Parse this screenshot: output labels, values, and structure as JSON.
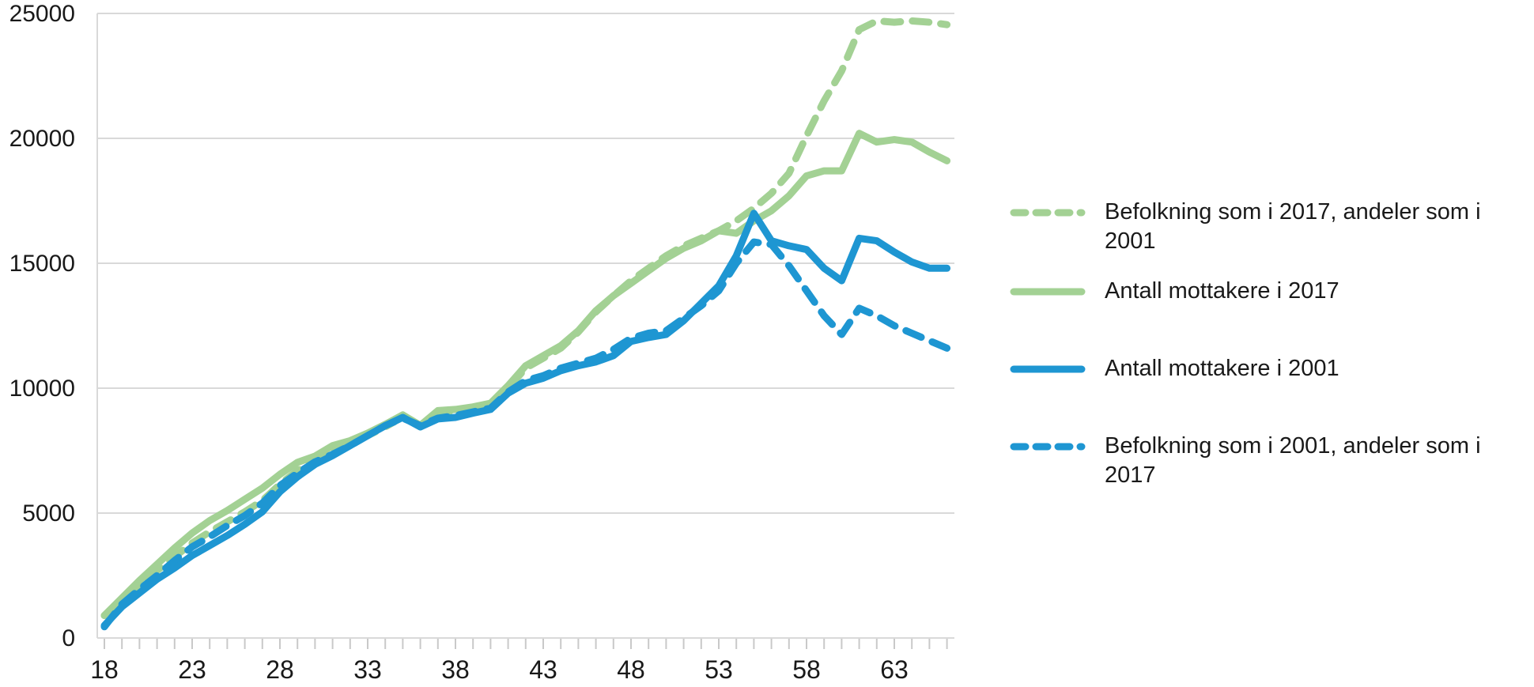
{
  "chart_data": {
    "type": "line",
    "title": "",
    "xlabel": "",
    "ylabel": "",
    "x_start": 18,
    "x_end": 66,
    "xlim": [
      17.6,
      66.5
    ],
    "ylim": [
      0,
      25000
    ],
    "xticks": [
      18,
      23,
      28,
      33,
      38,
      43,
      48,
      53,
      58,
      63
    ],
    "yticks": [
      0,
      5000,
      10000,
      15000,
      20000,
      25000
    ],
    "ytick_labels": [
      "0",
      "5000",
      "10000",
      "15000",
      "20000",
      "25000"
    ],
    "grid": "horizontal",
    "grid_color": "#d9d9d9",
    "axis_color": "#c9c9c9",
    "text_color": "#191919",
    "legend_position": "right",
    "series": [
      {
        "name": "Befolkning som i 2017, andeler som i 2001",
        "color": "#a3d194",
        "dash": true,
        "values": [
          900,
          1550,
          2150,
          2700,
          3250,
          3800,
          4250,
          4650,
          5050,
          5500,
          6150,
          6700,
          7100,
          7500,
          7800,
          8100,
          8450,
          8850,
          8450,
          9000,
          9100,
          9200,
          9350,
          10000,
          10800,
          11200,
          11600,
          12250,
          13050,
          13700,
          14300,
          14800,
          15300,
          15700,
          16000,
          16300,
          16700,
          17200,
          17800,
          18600,
          20100,
          21500,
          22700,
          24350,
          24700,
          24650,
          24700,
          24650,
          24550
        ]
      },
      {
        "name": "Antall mottakere i 2017",
        "color": "#a3d194",
        "dash": false,
        "values": [
          900,
          1600,
          2300,
          2950,
          3600,
          4200,
          4700,
          5100,
          5550,
          6000,
          6550,
          7030,
          7280,
          7700,
          7900,
          8200,
          8550,
          8930,
          8510,
          9100,
          9150,
          9250,
          9400,
          10100,
          10900,
          11300,
          11700,
          12300,
          13100,
          13700,
          14200,
          14700,
          15200,
          15600,
          15900,
          16300,
          16200,
          16700,
          17100,
          17700,
          18500,
          18700,
          18700,
          20200,
          19850,
          19950,
          19850,
          19450,
          19100
        ]
      },
      {
        "name": "Antall mottakere i 2001",
        "color": "#1e96d2",
        "dash": false,
        "values": [
          500,
          1250,
          1800,
          2350,
          2800,
          3300,
          3700,
          4100,
          4550,
          5050,
          5850,
          6450,
          6950,
          7300,
          7700,
          8100,
          8500,
          8830,
          8450,
          8770,
          8830,
          9000,
          9150,
          9800,
          10200,
          10400,
          10700,
          10900,
          11050,
          11300,
          11870,
          12030,
          12150,
          12700,
          13400,
          14100,
          15300,
          17000,
          15900,
          15700,
          15550,
          14800,
          14300,
          16000,
          15900,
          15450,
          15050,
          14800,
          14800
        ]
      },
      {
        "name": "Befolkning som i 2001, andeler som i 2017",
        "color": "#1e96d2",
        "dash": true,
        "values": [
          450,
          1350,
          1950,
          2500,
          3100,
          3650,
          4050,
          4500,
          4900,
          5400,
          6100,
          6600,
          7050,
          7350,
          7700,
          8100,
          8500,
          8800,
          8500,
          8800,
          8900,
          9050,
          9200,
          9850,
          10300,
          10500,
          10800,
          11000,
          11200,
          11550,
          12000,
          12200,
          12300,
          12800,
          13300,
          13900,
          15000,
          15850,
          15750,
          14900,
          13900,
          12900,
          12150,
          13200,
          12900,
          12500,
          12200,
          11900,
          11600
        ]
      }
    ]
  }
}
